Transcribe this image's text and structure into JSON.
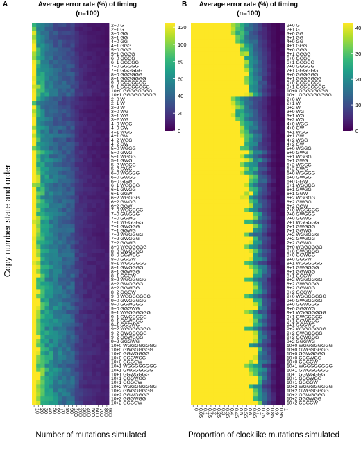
{
  "y_axis_label": "Copy number state and order",
  "row_labels": [
    "2+0 G",
    "2+1 G",
    "3+0 GG",
    "3+1 GG",
    "4+0 GG",
    "4+1 GGG",
    "5+0 GGG",
    "5+1 GGGG",
    "6+0 GGGG",
    "6+1 GGGGG",
    "7+0 GGGGG",
    "7+1 GGGGGG",
    "8+0 GGGGGG",
    "8+1 GGGGGGG",
    "9+0 GGGGGGG",
    "9+1 GGGGGGGG",
    "10+0 GGGGGGGG",
    "10+1 GGGGGGGGG",
    "2+0 W",
    "2+1 W",
    "2+2 W",
    "3+0 WG",
    "3+1 WG",
    "3+2 WG",
    "4+0 WGG",
    "4+0 GW",
    "4+1 WGG",
    "4+1 GW",
    "4+2 WGG",
    "4+2 GW",
    "5+0 WGGG",
    "5+0 GWG",
    "5+1 WGGG",
    "5+1 GWG",
    "5+2 WGGG",
    "5+2 GWG",
    "6+0 WGGGG",
    "6+0 GWGG",
    "6+0 GGW",
    "6+1 WGGGG",
    "6+1 GWGG",
    "6+1 GGW",
    "6+2 WGGGG",
    "6+2 GWGG",
    "6+2 GGW",
    "7+0 WGGGGG",
    "7+0 GWGGG",
    "7+0 GGWG",
    "7+1 WGGGGG",
    "7+1 GWGGG",
    "7+1 GGWG",
    "7+2 WGGGGG",
    "7+2 GWGGG",
    "7+2 GGWG",
    "8+0 WGGGGGG",
    "8+0 GWGGGG",
    "8+0 GGWGG",
    "8+0 GGGW",
    "8+1 WGGGGGG",
    "8+1 GWGGGG",
    "8+1 GGWGG",
    "8+1 GGGW",
    "8+2 WGGGGGG",
    "8+2 GWGGGG",
    "8+2 GGWGG",
    "8+2 GGGW",
    "9+0 WGGGGGGG",
    "9+0 GWGGGGG",
    "9+0 GGWGGG",
    "9+0 GGGWG",
    "9+1 WGGGGGGG",
    "9+1 GWGGGGG",
    "9+1 GGWGGG",
    "9+1 GGGWG",
    "9+2 WGGGGGGG",
    "9+2 GWGGGGG",
    "9+2 GGWGGG",
    "9+2 GGGWG",
    "10+0 WGGGGGGGG",
    "10+0 GWGGGGGG",
    "10+0 GGWGGGG",
    "10+0 GGGWGG",
    "10+0 GGGGW",
    "10+1 WGGGGGGGG",
    "10+1 GWGGGGGG",
    "10+1 GGWGGGG",
    "10+1 GGGWGG",
    "10+1 GGGGW",
    "10+2 WGGGGGGGG",
    "10+2 GWGGGGGG",
    "10+2 GGWGGGG",
    "10+2 GGGWGG",
    "10+2 GGGGW"
  ],
  "panels": [
    {
      "letter": "A",
      "title": "Average error rate (%) of timing",
      "subtitle": "(n=100)",
      "xlabel": "Number of mutations simulated",
      "x_ticks": [
        "10",
        "20",
        "30",
        "40",
        "50",
        "60",
        "70",
        "80",
        "90",
        "100",
        "200",
        "300",
        "400",
        "500",
        "600",
        "700",
        "800",
        "900"
      ],
      "legend_ticks": [
        0,
        20,
        40,
        60,
        80,
        100,
        120
      ],
      "legend_max": 125
    },
    {
      "letter": "B",
      "title": "Average error rate (%) of timing",
      "subtitle": "(n=100)",
      "xlabel": "Proportion of clocklike mutations simulated",
      "x_ticks": [
        "0",
        "0.05",
        "0.1",
        "0.15",
        "0.2",
        "0.25",
        "0.3",
        "0.35",
        "0.4",
        "0.45",
        "0.5",
        "0.55",
        "0.6",
        "0.65",
        "0.7",
        "0.75",
        "0.8",
        "0.85",
        "0.9",
        "0.95",
        "1"
      ],
      "legend_ticks": [
        0,
        100,
        200,
        300,
        400
      ],
      "legend_max": 420
    }
  ],
  "chart_data": [
    {
      "type": "heatmap",
      "title": "Average error rate (%) of timing (n=100)",
      "xlabel": "Number of mutations simulated",
      "ylabel": "Copy number state and order",
      "x": [
        10,
        20,
        30,
        40,
        50,
        60,
        70,
        80,
        90,
        100,
        200,
        300,
        400,
        500,
        600,
        700,
        800,
        900
      ],
      "color_range": [
        0,
        125
      ],
      "colormap": "viridis",
      "note_values": "Approximate: error falls from ~100 at 10 mutations to ~5 at 900 mutations; higher for rows starting a new copy-number block"
    },
    {
      "type": "heatmap",
      "title": "Average error rate (%) of timing (n=100)",
      "xlabel": "Proportion of clocklike mutations simulated",
      "ylabel": "Copy number state and order",
      "x": [
        0,
        0.05,
        0.1,
        0.15,
        0.2,
        0.25,
        0.3,
        0.35,
        0.4,
        0.45,
        0.5,
        0.55,
        0.6,
        0.65,
        0.7,
        0.75,
        0.8,
        0.85,
        0.9,
        0.95,
        1
      ],
      "color_range": [
        0,
        420
      ],
      "colormap": "viridis",
      "note_values": "Approximate: saturated (>400) at low proportions, decreasing to ~0-20 near proportion 1"
    }
  ],
  "colors": {
    "viridis": [
      "#440154",
      "#482878",
      "#3e4989",
      "#31688e",
      "#26828e",
      "#1f9e89",
      "#35b779",
      "#6ece58",
      "#b5de2b",
      "#fde725"
    ]
  }
}
